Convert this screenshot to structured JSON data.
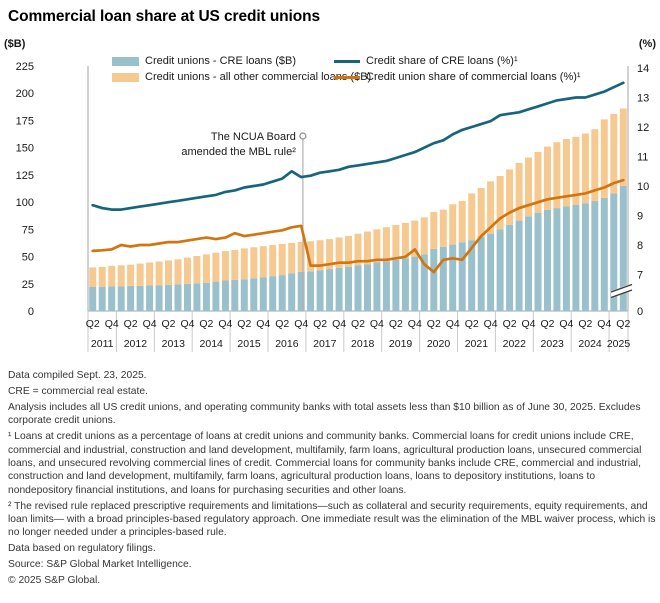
{
  "title": "Commercial loan share at US credit unions",
  "axes": {
    "left_unit": "($B)",
    "right_unit": "(%)",
    "left_ticks": [
      0,
      25,
      50,
      75,
      100,
      125,
      150,
      175,
      200,
      225
    ],
    "left_max": 225,
    "right_ticks": [
      0,
      7,
      8,
      9,
      10,
      11,
      12,
      13,
      14
    ],
    "right_axis_break_between": [
      0,
      7
    ]
  },
  "legend": {
    "items": [
      {
        "label": "Credit unions - CRE loans ($B)",
        "swatch": "bar",
        "color_key": "bar_cre"
      },
      {
        "label": "Credit unions - all other commercial loans ($B)",
        "swatch": "bar",
        "color_key": "bar_other"
      },
      {
        "label": "Credit share of CRE loans (%)¹",
        "swatch": "line",
        "color_key": "line_cre_share"
      },
      {
        "label": "Credit union share of commercial loans (%)¹",
        "swatch": "line",
        "color_key": "line_cu_share"
      }
    ]
  },
  "colors": {
    "bar_cre": "#9ac0cb",
    "bar_other": "#f6c990",
    "line_cre_share": "#17657c",
    "line_cu_share": "#d2750f",
    "axis": "#a6a6a6",
    "separator": "#c9c9c9",
    "annotation_line": "#b0b0b0",
    "break_mark": "#3c3c3c"
  },
  "annotation": {
    "line1": "The NCUA Board",
    "line2": "amended the MBL rule²",
    "after_quarter": "2016Q4"
  },
  "chart_data": {
    "type": "combo-stacked-bar-and-line",
    "x_quarters": [
      "2011Q2",
      "2011Q3",
      "2011Q4",
      "2012Q1",
      "2012Q2",
      "2012Q3",
      "2012Q4",
      "2013Q1",
      "2013Q2",
      "2013Q3",
      "2013Q4",
      "2014Q1",
      "2014Q2",
      "2014Q3",
      "2014Q4",
      "2015Q1",
      "2015Q2",
      "2015Q3",
      "2015Q4",
      "2016Q1",
      "2016Q2",
      "2016Q3",
      "2016Q4",
      "2017Q1",
      "2017Q2",
      "2017Q3",
      "2017Q4",
      "2018Q1",
      "2018Q2",
      "2018Q3",
      "2018Q4",
      "2019Q1",
      "2019Q2",
      "2019Q3",
      "2019Q4",
      "2020Q1",
      "2020Q2",
      "2020Q3",
      "2020Q4",
      "2021Q1",
      "2021Q2",
      "2021Q3",
      "2021Q4",
      "2022Q1",
      "2022Q2",
      "2022Q3",
      "2022Q4",
      "2023Q1",
      "2023Q2",
      "2023Q3",
      "2023Q4",
      "2024Q1",
      "2024Q2",
      "2024Q3",
      "2024Q4",
      "2025Q1",
      "2025Q2"
    ],
    "series": [
      {
        "name": "Credit unions - CRE loans ($B)",
        "type": "bar-stack",
        "axis": "left",
        "color_key": "bar_cre",
        "values": [
          22,
          22,
          22.5,
          22.5,
          23,
          23,
          23.5,
          23.5,
          24,
          24.5,
          25,
          25.5,
          26,
          27,
          28,
          28.5,
          29,
          30,
          31,
          32,
          33,
          34.5,
          36,
          36.5,
          37.5,
          38.5,
          39.5,
          40.5,
          42,
          43,
          44.5,
          45.5,
          47,
          48.5,
          50,
          52,
          57,
          59,
          61,
          63,
          65,
          68,
          71,
          75,
          79,
          83,
          87,
          90,
          93,
          94.5,
          96,
          97.5,
          99,
          101,
          104,
          108,
          115
        ]
      },
      {
        "name": "Credit unions - all other commercial loans ($B)",
        "type": "bar-stack",
        "axis": "left",
        "color_key": "bar_other",
        "values": [
          18,
          18.5,
          19,
          19.5,
          19.5,
          20.5,
          21,
          22,
          22.5,
          23,
          24,
          25,
          26,
          26.5,
          27,
          27.5,
          28.5,
          28.5,
          28.5,
          28.5,
          28.5,
          28,
          27.5,
          27.5,
          27.5,
          27.5,
          28,
          28.5,
          29,
          30,
          30.5,
          31.5,
          32,
          32.5,
          33,
          34,
          34,
          34,
          37,
          38,
          43,
          45,
          48,
          49,
          51,
          53,
          54,
          56,
          58,
          60.5,
          62,
          62.5,
          64,
          66,
          72,
          73,
          71
        ]
      },
      {
        "name": "Credit share of CRE loans (%)",
        "type": "line",
        "axis": "right",
        "color_key": "line_cre_share",
        "values": [
          9.35,
          9.25,
          9.2,
          9.2,
          9.25,
          9.3,
          9.35,
          9.4,
          9.45,
          9.5,
          9.55,
          9.6,
          9.65,
          9.7,
          9.8,
          9.85,
          9.95,
          10.0,
          10.05,
          10.15,
          10.25,
          10.5,
          10.3,
          10.35,
          10.45,
          10.5,
          10.55,
          10.65,
          10.7,
          10.75,
          10.8,
          10.85,
          10.95,
          11.05,
          11.15,
          11.3,
          11.45,
          11.55,
          11.75,
          11.9,
          12.0,
          12.1,
          12.2,
          12.4,
          12.45,
          12.5,
          12.6,
          12.7,
          12.8,
          12.9,
          12.95,
          13.0,
          13.0,
          13.1,
          13.2,
          13.35,
          13.5
        ]
      },
      {
        "name": "Credit union share of commercial loans (%)",
        "type": "line",
        "axis": "right",
        "color_key": "line_cu_share",
        "values": [
          7.8,
          7.82,
          7.85,
          8.0,
          7.95,
          8.0,
          8.0,
          8.05,
          8.1,
          8.1,
          8.15,
          8.2,
          8.25,
          8.2,
          8.25,
          8.4,
          8.3,
          8.35,
          8.4,
          8.45,
          8.5,
          8.6,
          8.65,
          7.3,
          7.3,
          7.35,
          7.4,
          7.4,
          7.45,
          7.45,
          7.5,
          7.5,
          7.55,
          7.6,
          7.85,
          7.35,
          7.08,
          7.5,
          7.55,
          7.5,
          7.9,
          8.3,
          8.6,
          8.9,
          9.1,
          9.25,
          9.35,
          9.45,
          9.55,
          9.6,
          9.65,
          9.7,
          9.75,
          9.85,
          9.95,
          10.1,
          10.2
        ]
      }
    ],
    "left_axis_range": [
      0,
      225
    ],
    "right_axis_range_shown": [
      7,
      14
    ],
    "right_axis_break": true,
    "grid": false,
    "legend_position": "top"
  },
  "footer": {
    "paragraphs": [
      "Data compiled Sept. 23, 2025.",
      "CRE = commercial real estate.",
      "Analysis includes all US credit unions, and operating community banks with total assets less than $10 billion as of June 30, 2025. Excludes corporate credit unions.",
      "¹ Loans at credit unions  as a percentage of loans at credit unions and community banks. Commercial loans for credit unions include CRE, commercial and industrial, construction and land development, multifamily, farm loans, agricultural production loans, unsecured commercial loans, and unsecured revolving commercial lines of credit. Commercial loans for community banks include CRE, commercial and industrial, construction and land development, multifamily, farm loans, agricultural production loans, loans to depository institutions, loans to nondepository financial institutions, and loans for purchasing securities and other loans.",
      "² The revised rule replaced prescriptive requirements and limitations—such as collateral and security requirements, equity requirements, and loan limits— with a broad principles-based regulatory approach. One immediate result was the elimination of the MBL waiver process, which is no longer needed under a principles-based rule.",
      "Data based on regulatory filings.",
      "Source: S&P Global Market Intelligence.",
      "© 2025 S&P Global."
    ]
  }
}
